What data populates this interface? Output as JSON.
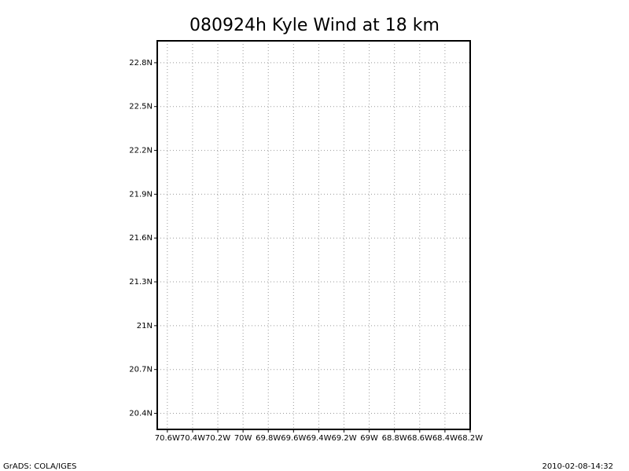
{
  "chart_data": {
    "type": "map",
    "title": "080924h Kyle Wind at 18 km",
    "xlim": [
      -70.68,
      -68.2
    ],
    "ylim": [
      20.29,
      22.95
    ],
    "xticks": [
      {
        "value": -70.6,
        "label": "70.6W"
      },
      {
        "value": -70.4,
        "label": "70.4W"
      },
      {
        "value": -70.2,
        "label": "70.2W"
      },
      {
        "value": -70,
        "label": "70W"
      },
      {
        "value": -69.8,
        "label": "69.8W"
      },
      {
        "value": -69.6,
        "label": "69.6W"
      },
      {
        "value": -69.4,
        "label": "69.4W"
      },
      {
        "value": -69.2,
        "label": "69.2W"
      },
      {
        "value": -69,
        "label": "69W"
      },
      {
        "value": -68.8,
        "label": "68.8W"
      },
      {
        "value": -68.6,
        "label": "68.6W"
      },
      {
        "value": -68.4,
        "label": "68.4W"
      },
      {
        "value": -68.2,
        "label": "68.2W"
      }
    ],
    "yticks": [
      {
        "value": 20.4,
        "label": "20.4N"
      },
      {
        "value": 20.7,
        "label": "20.7N"
      },
      {
        "value": 21,
        "label": "21N"
      },
      {
        "value": 21.3,
        "label": "21.3N"
      },
      {
        "value": 21.6,
        "label": "21.6N"
      },
      {
        "value": 21.9,
        "label": "21.9N"
      },
      {
        "value": 22.2,
        "label": "22.2N"
      },
      {
        "value": 22.5,
        "label": "22.5N"
      },
      {
        "value": 22.8,
        "label": "22.8N"
      }
    ],
    "grid": true,
    "footer_left": "GrADS: COLA/IGES",
    "footer_right": "2010-02-08-14:32"
  }
}
